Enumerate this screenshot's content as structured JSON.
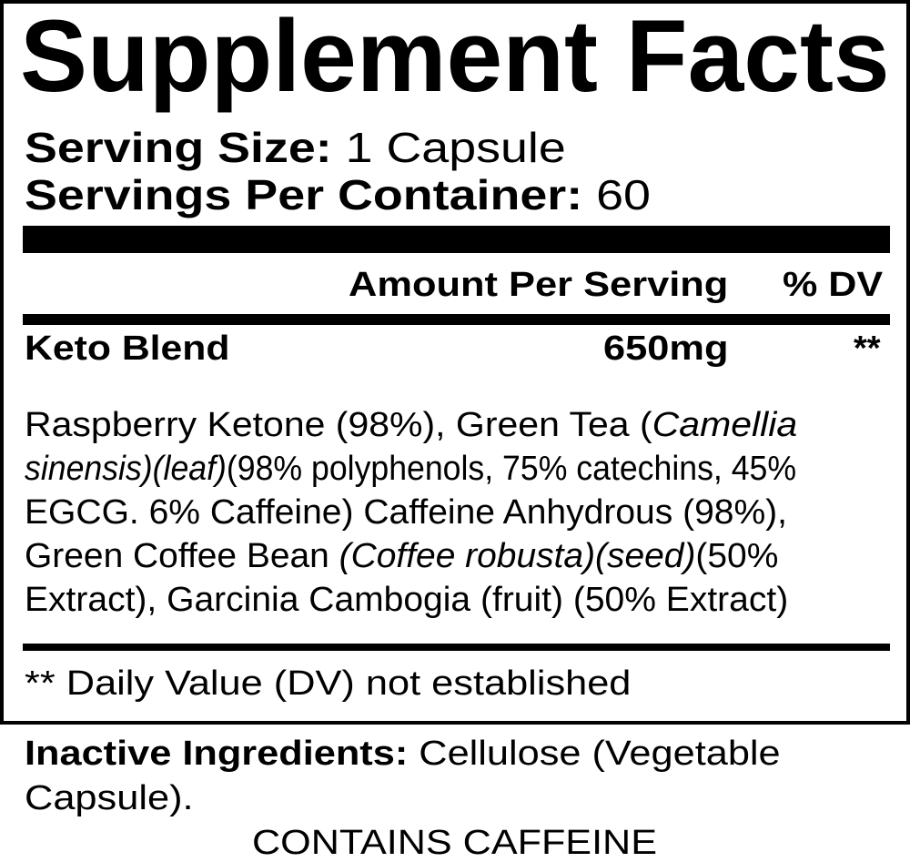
{
  "title": "Supplement Facts",
  "serving": {
    "size_label": "Serving Size:",
    "size_value": " 1 Capsule",
    "per_container_label": "Servings Per Container:",
    "per_container_value": " 60"
  },
  "header": {
    "amount": "Amount Per Serving",
    "dv": "% DV"
  },
  "row": {
    "name": "Keto Blend",
    "amount": "650mg",
    "dv": "**"
  },
  "ingredients": [
    [
      {
        "text": "Raspberry Ketone (98%), Green Tea (",
        "italic": false
      },
      {
        "text": "Camellia",
        "italic": true
      }
    ],
    [
      {
        "text": "sinensis)(leaf)",
        "italic": true
      },
      {
        "text": "(98% polyphenols, 75% catechins, 45%",
        "italic": false
      }
    ],
    [
      {
        "text": "EGCG. 6% Caffeine) Caffeine Anhydrous (98%),",
        "italic": false
      }
    ],
    [
      {
        "text": "Green Coffee Bean ",
        "italic": false
      },
      {
        "text": "(Coffee robusta)(seed)",
        "italic": true
      },
      {
        "text": "(50%",
        "italic": false
      }
    ],
    [
      {
        "text": "Extract), Garcinia Cambogia (fruit) (50% Extract)",
        "italic": false
      }
    ]
  ],
  "footnote": "** Daily Value (DV) not established",
  "inactive": {
    "label": "Inactive Ingredients:",
    "value": " Cellulose (Vegetable",
    "value_cont": "Capsule)."
  },
  "warning": "CONTAINS CAFFEINE"
}
